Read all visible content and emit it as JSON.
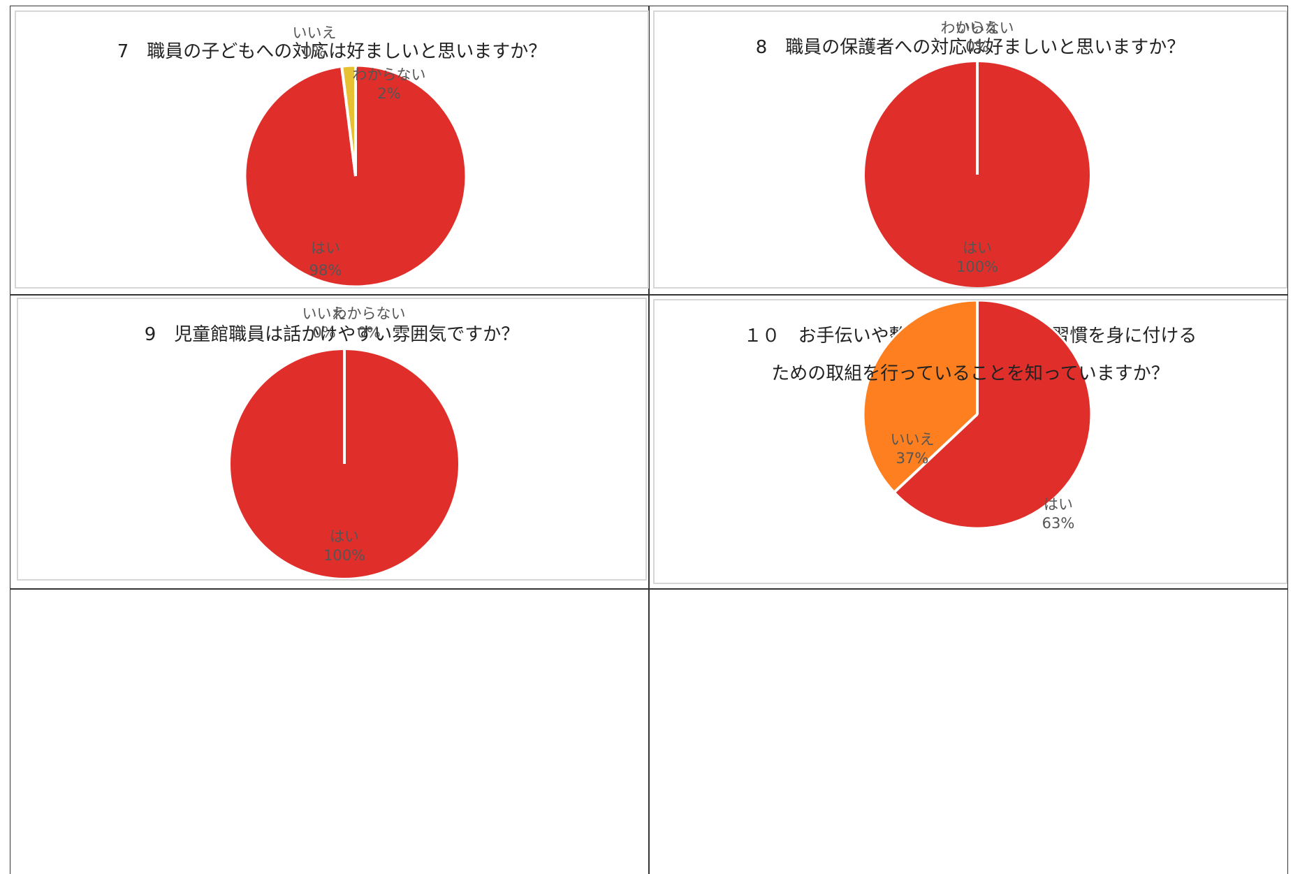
{
  "colors": {
    "hai": "#e02f2a",
    "iie": "#fd7f1f",
    "wakaranai": "#e8c033",
    "label_text": "#555555"
  },
  "chart_data": [
    {
      "type": "pie",
      "title": "7　職員の子どもへの対応は好ましいと思いますか？",
      "slices": [
        {
          "label": "はい",
          "value": 98,
          "value_label": "98%"
        },
        {
          "label": "いいえ",
          "value": 0,
          "value_label": "0%"
        },
        {
          "label": "わからない",
          "value": 2,
          "value_label": "2%"
        }
      ]
    },
    {
      "type": "pie",
      "title": "8　職員の保護者への対応は好ましいと思いますか？",
      "slices": [
        {
          "label": "はい",
          "value": 100,
          "value_label": "100%"
        },
        {
          "label": "いいえ",
          "value": 0,
          "value_label": "0%"
        },
        {
          "label": "わからない",
          "value": 0,
          "value_label": "0%"
        }
      ]
    },
    {
      "type": "pie",
      "title": "9　児童館職員は話かけやすい雰囲気ですか？",
      "slices": [
        {
          "label": "はい",
          "value": 100,
          "value_label": "100%"
        },
        {
          "label": "いいえ",
          "value": 0,
          "value_label": "0%"
        },
        {
          "label": "わからない",
          "value": 0,
          "value_label": "0%"
        }
      ]
    },
    {
      "type": "pie",
      "title": [
        "１０　お手伝いや整理整頓など、生活習慣を身に付ける",
        "ための取組を行っていることを知っていますか？"
      ],
      "slices": [
        {
          "label": "はい",
          "value": 63,
          "value_label": "63%"
        },
        {
          "label": "いいえ",
          "value": 37,
          "value_label": "37%"
        }
      ]
    }
  ]
}
